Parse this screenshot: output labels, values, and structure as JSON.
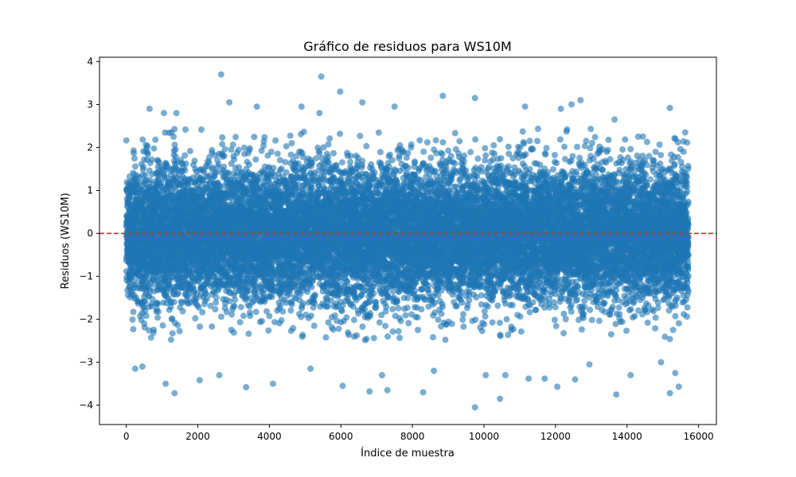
{
  "chart_data": {
    "type": "scatter",
    "title": "Gráfico de residuos para WS10M",
    "xlabel": "Índice de muestra",
    "ylabel": "Residuos (WS10M)",
    "xlim": [
      -750,
      16500
    ],
    "ylim": [
      -4.45,
      4.1
    ],
    "xticks": [
      0,
      2000,
      4000,
      6000,
      8000,
      10000,
      12000,
      14000,
      16000
    ],
    "yticks": [
      -4,
      -3,
      -2,
      -1,
      0,
      1,
      2,
      3,
      4
    ],
    "series": [
      {
        "color": "#1f77b4",
        "alpha": 0.6,
        "n_points": 15720,
        "x_range": [
          0,
          15720
        ],
        "distribution": "dense band roughly between -1.8 and 1.8 centred on 0",
        "outliers": [
          [
            2650,
            3.7
          ],
          [
            5450,
            3.65
          ],
          [
            5980,
            3.3
          ],
          [
            8850,
            3.2
          ],
          [
            9750,
            3.15
          ],
          [
            12700,
            3.1
          ],
          [
            2880,
            3.05
          ],
          [
            6600,
            3.05
          ],
          [
            7500,
            2.95
          ],
          [
            3650,
            2.95
          ],
          [
            4900,
            2.95
          ],
          [
            15200,
            2.92
          ],
          [
            11150,
            2.95
          ],
          [
            12450,
            3.0
          ],
          [
            650,
            2.9
          ],
          [
            12150,
            2.9
          ],
          [
            13650,
            2.65
          ],
          [
            1050,
            2.8
          ],
          [
            5400,
            2.8
          ],
          [
            1400,
            2.8
          ],
          [
            9750,
            -4.05
          ],
          [
            10450,
            -3.85
          ],
          [
            1350,
            -3.72
          ],
          [
            6800,
            -3.68
          ],
          [
            7300,
            -3.65
          ],
          [
            8300,
            -3.7
          ],
          [
            13700,
            -3.75
          ],
          [
            15200,
            -3.72
          ],
          [
            3350,
            -3.58
          ],
          [
            6050,
            -3.55
          ],
          [
            12050,
            -3.57
          ],
          [
            15450,
            -3.57
          ],
          [
            4100,
            -3.5
          ],
          [
            1100,
            -3.5
          ],
          [
            11250,
            -3.38
          ],
          [
            11700,
            -3.38
          ],
          [
            12550,
            -3.4
          ],
          [
            14100,
            -3.3
          ],
          [
            15350,
            -3.25
          ],
          [
            10600,
            -3.3
          ],
          [
            450,
            -3.1
          ],
          [
            250,
            -3.15
          ],
          [
            2050,
            -3.42
          ],
          [
            2600,
            -3.3
          ],
          [
            7150,
            -3.3
          ],
          [
            12950,
            -3.05
          ],
          [
            10050,
            -3.3
          ],
          [
            8600,
            -3.2
          ],
          [
            14950,
            -3.0
          ],
          [
            5150,
            -3.15
          ]
        ]
      }
    ],
    "reference_line": {
      "y": 0,
      "color": "#d62728",
      "style": "dashed"
    }
  }
}
